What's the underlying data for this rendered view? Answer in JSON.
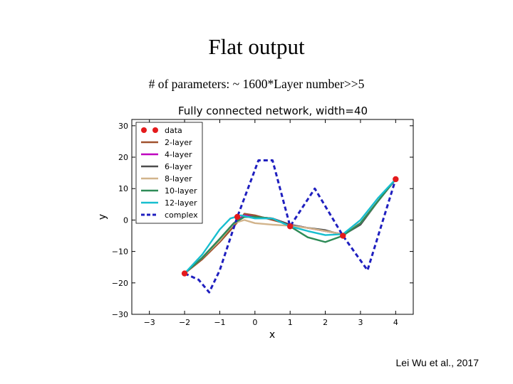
{
  "slide": {
    "title": "Flat output",
    "subtitle": "# of parameters: ~ 1600*Layer number>>5",
    "citation": "Lei Wu et al., 2017"
  },
  "chart_data": {
    "type": "line",
    "title": "Fully connected network, width=40",
    "xlabel": "x",
    "ylabel": "y",
    "xlim": [
      -3.5,
      4.5
    ],
    "ylim": [
      -30,
      32
    ],
    "xticks": [
      -3,
      -2,
      -1,
      0,
      1,
      2,
      3,
      4
    ],
    "xtick_labels": [
      "−3",
      "−2",
      "−1",
      "0",
      "1",
      "2",
      "3",
      "4"
    ],
    "yticks": [
      -30,
      -20,
      -10,
      0,
      10,
      20,
      30
    ],
    "ytick_labels": [
      "−30",
      "−20",
      "−10",
      "0",
      "10",
      "20",
      "30"
    ],
    "grid": false,
    "legend_position": "top-left",
    "data_points": {
      "name": "data",
      "color": "#e41a1c",
      "x": [
        -2,
        -0.5,
        1,
        2.5,
        4
      ],
      "y": [
        -17,
        1,
        -2,
        -5,
        13
      ]
    },
    "series": [
      {
        "name": "2-layer",
        "color": "#a0522d",
        "style": "solid",
        "x": [
          -2,
          -1.5,
          -1,
          -0.6,
          -0.3,
          0,
          0.5,
          1,
          1.5,
          2,
          2.5,
          3,
          3.5,
          4
        ],
        "y": [
          -17,
          -12.5,
          -7,
          -2,
          2,
          1.5,
          0,
          -1.5,
          -2.5,
          -3.5,
          -4.5,
          -1,
          6,
          13
        ]
      },
      {
        "name": "4-layer",
        "color": "#bf00bf",
        "style": "solid",
        "x": [
          -2,
          -1.5,
          -1,
          -0.6,
          -0.3,
          0,
          0.5,
          1,
          1.5,
          2,
          2.5,
          3,
          3.5,
          4
        ],
        "y": [
          -17,
          -12,
          -6,
          -1,
          1.5,
          1,
          0.5,
          -1.5,
          -2.5,
          -3.5,
          -4.5,
          -1,
          6,
          13
        ]
      },
      {
        "name": "6-layer",
        "color": "#4d4d4d",
        "style": "solid",
        "x": [
          -2,
          -1.5,
          -1,
          -0.6,
          -0.3,
          0,
          0.5,
          1,
          1.5,
          2,
          2.5,
          3,
          3.5,
          4
        ],
        "y": [
          -17,
          -12,
          -6,
          -1,
          1,
          1,
          0.5,
          -1.5,
          -2.5,
          -3.2,
          -4.8,
          -1.5,
          6,
          13
        ]
      },
      {
        "name": "8-layer",
        "color": "#d2b48c",
        "style": "solid",
        "x": [
          -2,
          -1.5,
          -1,
          -0.6,
          -0.3,
          0,
          0.5,
          1,
          1.5,
          2,
          2.5,
          3,
          3.5,
          4
        ],
        "y": [
          -17,
          -12,
          -6.5,
          -1,
          0,
          -1,
          -1.5,
          -1.8,
          -2.5,
          -3.5,
          -4.5,
          -1,
          6,
          13
        ]
      },
      {
        "name": "10-layer",
        "color": "#2e8b57",
        "style": "solid",
        "x": [
          -2,
          -1.5,
          -1,
          -0.6,
          -0.3,
          0,
          0.5,
          1,
          1.5,
          2,
          2.5,
          3,
          3.5,
          4
        ],
        "y": [
          -17,
          -12,
          -6,
          -1,
          1,
          1,
          0.5,
          -2,
          -5.5,
          -7,
          -5,
          -1,
          6,
          13
        ]
      },
      {
        "name": "12-layer",
        "color": "#17becf",
        "style": "solid",
        "x": [
          -2,
          -1.5,
          -1,
          -0.7,
          -0.4,
          0,
          0.5,
          1,
          1.5,
          2,
          2.5,
          3,
          3.5,
          4
        ],
        "y": [
          -17,
          -11,
          -3,
          0.5,
          1.5,
          0.5,
          0.5,
          -2,
          -3.5,
          -4.8,
          -4.5,
          0,
          7,
          13
        ]
      },
      {
        "name": "complex",
        "color": "#1f1fbf",
        "style": "dashed",
        "x": [
          -2,
          -1.6,
          -1.3,
          -1,
          -0.5,
          0.1,
          0.5,
          1,
          1.7,
          2.5,
          3.2,
          4
        ],
        "y": [
          -17,
          -19,
          -23,
          -16,
          1,
          19,
          19,
          -2,
          10,
          -5,
          -16,
          13
        ]
      }
    ]
  }
}
